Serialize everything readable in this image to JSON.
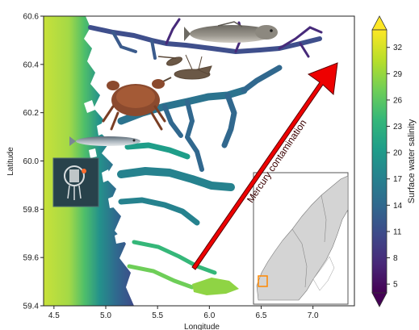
{
  "map": {
    "x_label": "Longitude",
    "y_label": "Latitude",
    "x_ticks": [
      "4.5",
      "5.0",
      "5.5",
      "6.0",
      "6.5",
      "7.0"
    ],
    "y_ticks": [
      "60.6",
      "60.4",
      "60.2",
      "60.0",
      "59.8",
      "59.6",
      "59.4"
    ],
    "x_range": [
      4.4,
      7.4
    ],
    "y_range": [
      59.4,
      60.6
    ],
    "arrow_label": "Mercury contamination",
    "arrow_color": "#ee0000",
    "land_color": "#ffffff",
    "inset_land_color": "#d4d4d4",
    "inset_frame_color": "#555555",
    "study_box_color": "#ff8800"
  },
  "colorbar": {
    "label": "Surface water salinity",
    "ticks": [
      "32",
      "29",
      "26",
      "23",
      "20",
      "17",
      "14",
      "11",
      "8",
      "5"
    ],
    "colormap": "viridis",
    "extend": "both",
    "colors": [
      "#440154",
      "#482878",
      "#3e4989",
      "#31688e",
      "#26828e",
      "#1f9e89",
      "#35b779",
      "#6ece58",
      "#b5de2b",
      "#fde725"
    ]
  },
  "images": [
    {
      "name": "fish-photo-upper"
    },
    {
      "name": "lobster-photo"
    },
    {
      "name": "crab-photo"
    },
    {
      "name": "herring-photo"
    },
    {
      "name": "sampling-instrument-photo"
    }
  ]
}
